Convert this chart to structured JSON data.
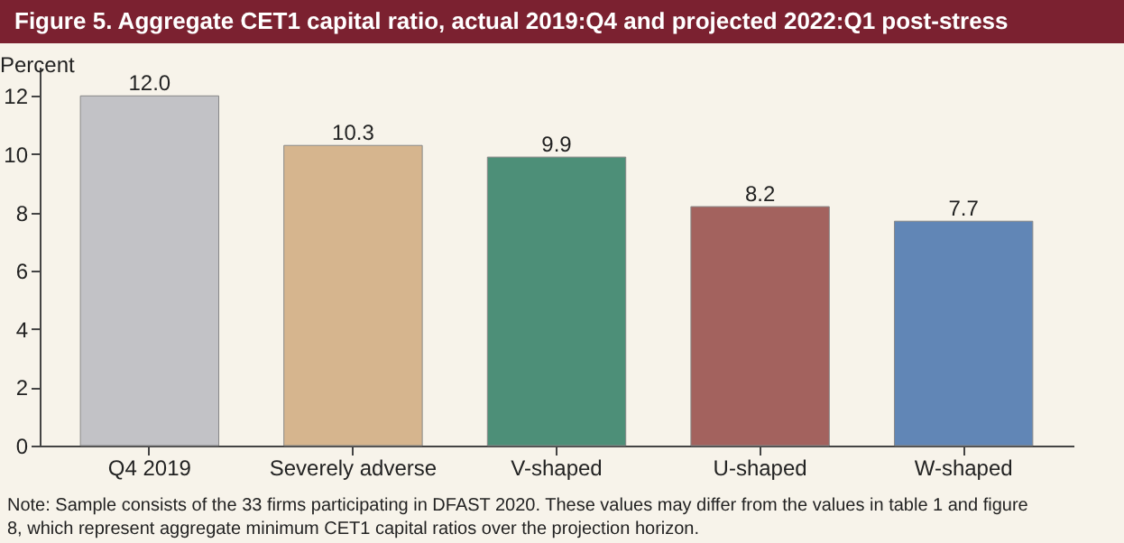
{
  "chart_data": {
    "type": "bar",
    "title": "Figure 5. Aggregate CET1 capital ratio, actual 2019:Q4 and projected 2022:Q1 post-stress",
    "ylabel": "Percent",
    "categories": [
      "Q4 2019",
      "Severely adverse",
      "V-shaped",
      "U-shaped",
      "W-shaped"
    ],
    "values": [
      12.0,
      10.3,
      9.9,
      8.2,
      7.7
    ],
    "colors": [
      "#c2c2c6",
      "#d6b58e",
      "#4d8f78",
      "#a3625e",
      "#6186b6"
    ],
    "value_labels": [
      "12.0",
      "10.3",
      "9.9",
      "8.2",
      "7.7"
    ],
    "ylim": [
      0,
      13
    ],
    "yticks": [
      0,
      2,
      4,
      6,
      8,
      10,
      12
    ],
    "grid": false,
    "annotations": [
      "Note: Sample consists of the 33 firms participating in DFAST 2020. These values may differ from the values in table 1 and figure 8, which represent aggregate minimum CET1 capital ratios over the projection horizon."
    ]
  }
}
